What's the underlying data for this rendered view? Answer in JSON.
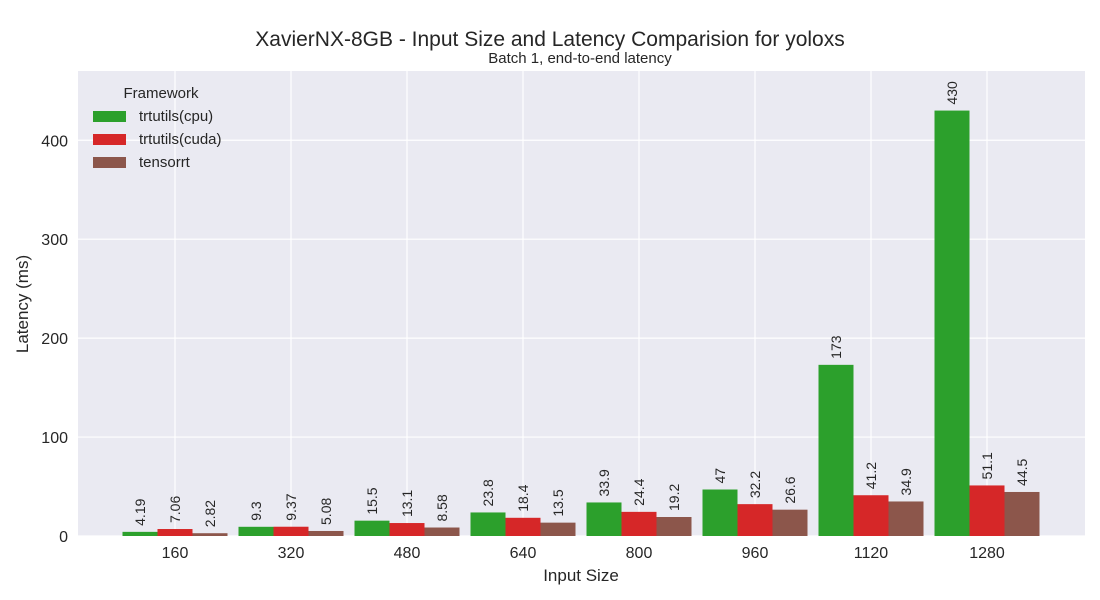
{
  "chart_data": {
    "type": "bar",
    "title": "XavierNX-8GB - Input Size and Latency Comparision for yoloxs",
    "subtitle": "Batch 1, end-to-end latency",
    "xlabel": "Input Size",
    "ylabel": "Latency (ms)",
    "categories": [
      "160",
      "320",
      "480",
      "640",
      "800",
      "960",
      "1120",
      "1280"
    ],
    "ylim": [
      0,
      470
    ],
    "yticks": [
      0,
      100,
      200,
      300,
      400
    ],
    "grid": true,
    "legend": {
      "title": "Framework",
      "placement": "top-left"
    },
    "series": [
      {
        "name": "trtutils(cpu)",
        "color": "#2ca02c",
        "values": [
          4.19,
          9.3,
          15.5,
          23.8,
          33.9,
          47,
          173,
          430
        ],
        "labels": [
          "4.19",
          "9.3",
          "15.5",
          "23.8",
          "33.9",
          "47",
          "173",
          "430"
        ]
      },
      {
        "name": "trtutils(cuda)",
        "color": "#d62728",
        "values": [
          7.06,
          9.37,
          13.1,
          18.4,
          24.4,
          32.2,
          41.2,
          51.1
        ],
        "labels": [
          "7.06",
          "9.37",
          "13.1",
          "18.4",
          "24.4",
          "32.2",
          "41.2",
          "51.1"
        ]
      },
      {
        "name": "tensorrt",
        "color": "#8c564b",
        "values": [
          2.82,
          5.08,
          8.58,
          13.5,
          19.2,
          26.6,
          34.9,
          44.5
        ],
        "labels": [
          "2.82",
          "5.08",
          "8.58",
          "13.5",
          "19.2",
          "26.6",
          "34.9",
          "44.5"
        ]
      }
    ]
  },
  "colors": {
    "plot_background": "#eaeaf2",
    "grid": "#ffffff"
  }
}
